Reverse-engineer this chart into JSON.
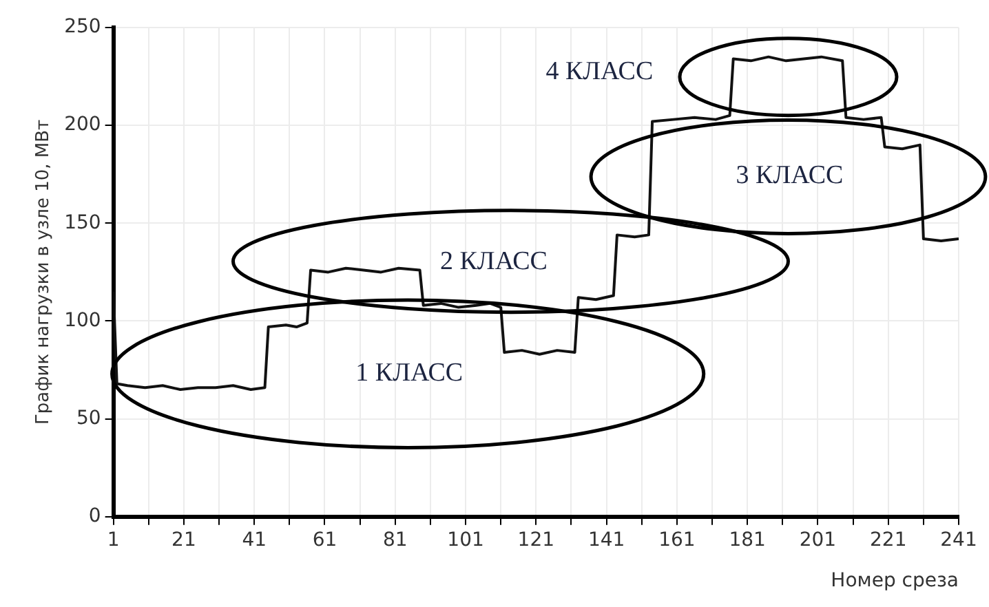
{
  "chart_data": {
    "type": "line",
    "xlabel": "Номер среза",
    "ylabel": "График нагрузки в узле 10, МВт",
    "x": [
      1,
      2,
      5,
      10,
      15,
      20,
      25,
      30,
      35,
      40,
      44,
      45,
      50,
      53,
      56,
      57,
      62,
      67,
      72,
      77,
      82,
      88,
      89,
      94,
      99,
      104,
      108,
      111,
      112,
      117,
      122,
      127,
      132,
      133,
      138,
      143,
      144,
      149,
      153,
      154,
      160,
      166,
      172,
      176,
      177,
      182,
      187,
      192,
      197,
      202,
      208,
      209,
      214,
      219,
      220,
      225,
      230,
      231,
      236,
      241
    ],
    "series": [
      {
        "color": "#111111",
        "values": [
          115,
          68,
          67,
          66,
          67,
          65,
          66,
          66,
          67,
          65,
          66,
          97,
          98,
          97,
          99,
          126,
          125,
          127,
          126,
          125,
          127,
          126,
          108,
          109,
          107,
          108,
          109,
          107,
          84,
          85,
          83,
          85,
          84,
          112,
          111,
          113,
          144,
          143,
          144,
          202,
          203,
          204,
          203,
          205,
          234,
          233,
          235,
          233,
          234,
          235,
          233,
          204,
          203,
          204,
          189,
          188,
          190,
          142,
          141,
          142
        ]
      }
    ],
    "xlim": [
      1,
      241
    ],
    "ylim": [
      0,
      250
    ],
    "xticks": [
      1,
      {
        "value": 11,
        "label": null
      },
      21,
      {
        "value": 31,
        "label": null
      },
      41,
      {
        "value": 51,
        "label": null
      },
      61,
      {
        "value": 71,
        "label": null
      },
      81,
      {
        "value": 91,
        "label": null
      },
      101,
      {
        "value": 111,
        "label": null
      },
      121,
      {
        "value": 131,
        "label": null
      },
      141,
      {
        "value": 151,
        "label": null
      },
      161,
      {
        "value": 171,
        "label": null
      },
      181,
      {
        "value": 191,
        "label": null
      },
      201,
      {
        "value": 211,
        "label": null
      },
      221,
      {
        "value": 231,
        "label": null
      },
      241
    ],
    "yticks": [
      0,
      50,
      100,
      150,
      200,
      250
    ],
    "grid": true,
    "legend": false,
    "marker": "none",
    "line_style": "solid",
    "annotations": [
      "1 КЛАСС",
      "2 КЛАСС",
      "3 КЛАСС",
      "4 КЛАСС"
    ]
  }
}
